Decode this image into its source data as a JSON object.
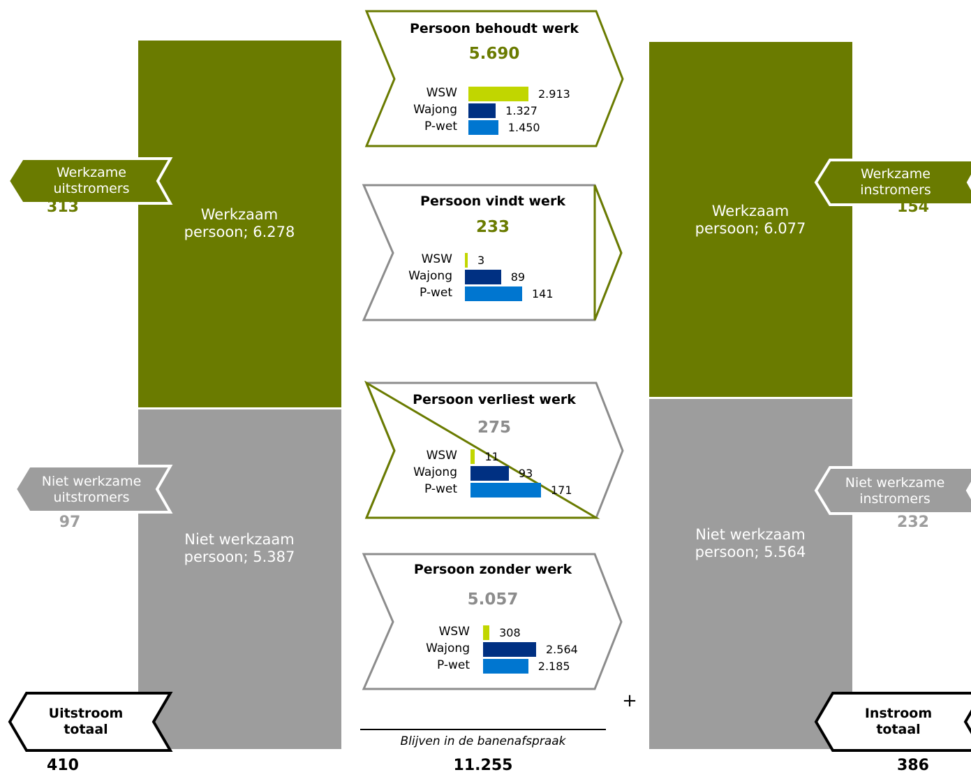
{
  "colors": {
    "green": "#6a7b00",
    "gray": "#9d9d9d",
    "lime": "#c1d600",
    "navy": "#003082",
    "blue": "#0076d0"
  },
  "left": {
    "working_block": "Werkzaam persoon;  6.278",
    "not_working_block": "Niet werkzaam persoon;  5.387",
    "working_tag": "Werkzame uitstromers",
    "working_value": "313",
    "not_working_tag": "Niet werkzame uitstromers",
    "not_working_value": "97",
    "total_tag": "Uitstroom totaal",
    "total_value": "410"
  },
  "right": {
    "working_block": "Werkzaam persoon;  6.077",
    "not_working_block": "Niet werkzaam persoon;  5.564",
    "working_tag": "Werkzame instromers",
    "working_value": "154",
    "not_working_tag": "Niet werkzame instromers",
    "not_working_value": "232",
    "total_tag": "Instroom totaal",
    "total_value": "386"
  },
  "center": {
    "plus": "+",
    "caption": "Blijven in de banenafspraak",
    "total": "11.255"
  },
  "chevrons": [
    {
      "title": "Persoon behoudt werk",
      "total": "5.690",
      "rows": [
        {
          "label": "WSW",
          "value": 2913,
          "value_text": "2.913"
        },
        {
          "label": "Wajong",
          "value": 1327,
          "value_text": "1.327"
        },
        {
          "label": "P-wet",
          "value": 1450,
          "value_text": "1.450"
        }
      ]
    },
    {
      "title": "Persoon vindt werk",
      "total": "233",
      "rows": [
        {
          "label": "WSW",
          "value": 3,
          "value_text": "3"
        },
        {
          "label": "Wajong",
          "value": 89,
          "value_text": "89"
        },
        {
          "label": "P-wet",
          "value": 141,
          "value_text": "141"
        }
      ]
    },
    {
      "title": "Persoon verliest werk",
      "total": "275",
      "rows": [
        {
          "label": "WSW",
          "value": 11,
          "value_text": "11"
        },
        {
          "label": "Wajong",
          "value": 93,
          "value_text": "93"
        },
        {
          "label": "P-wet",
          "value": 171,
          "value_text": "171"
        }
      ]
    },
    {
      "title": "Persoon zonder werk",
      "total": "5.057",
      "rows": [
        {
          "label": "WSW",
          "value": 308,
          "value_text": "308"
        },
        {
          "label": "Wajong",
          "value": 2564,
          "value_text": "2.564"
        },
        {
          "label": "P-wet",
          "value": 2185,
          "value_text": "2.185"
        }
      ]
    }
  ]
}
